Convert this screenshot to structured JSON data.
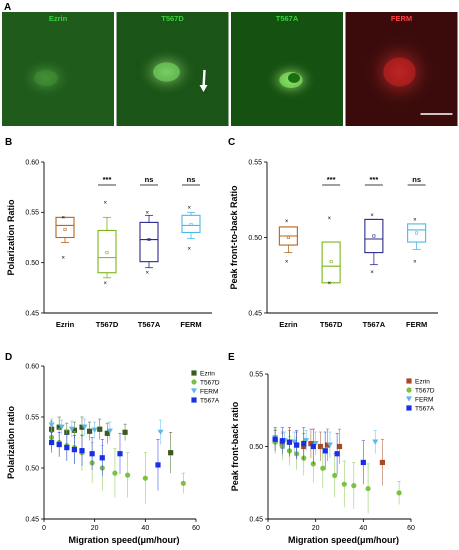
{
  "panel_A": {
    "label": "A",
    "images": [
      {
        "title": "Ezrin",
        "color": "#39d13b",
        "bg": "#1f5c1c",
        "cell": "#3d8a33"
      },
      {
        "title": "T567D",
        "color": "#39d13b",
        "bg": "#1b5417",
        "cell": "#6fc95a"
      },
      {
        "title": "T567A",
        "color": "#39d13b",
        "bg": "#155110",
        "cell": "#7ee05c"
      },
      {
        "title": "FERM",
        "color": "#ff4040",
        "bg": "#3b0b0b",
        "cell": "#b52020"
      }
    ]
  },
  "chart_data": [
    {
      "panel": "B",
      "type": "box",
      "title": "",
      "xlabel": "",
      "ylabel": "Polarization Ratio",
      "ylim": [
        0.45,
        0.6
      ],
      "yticks": [
        "0.45",
        "0.50",
        "0.55",
        "0.60"
      ],
      "categories": [
        "Ezrin",
        "T567D",
        "T567A",
        "FERM"
      ],
      "colors": [
        "#b5651d",
        "#7cb518",
        "#2a2a8c",
        "#4db8e8"
      ],
      "boxes": [
        {
          "min": 0.52,
          "q1": 0.525,
          "median": 0.537,
          "mean": 0.533,
          "q3": 0.545,
          "max": 0.545
        },
        {
          "min": 0.485,
          "q1": 0.49,
          "median": 0.505,
          "mean": 0.51,
          "q3": 0.532,
          "max": 0.545
        },
        {
          "min": 0.495,
          "q1": 0.501,
          "median": 0.523,
          "mean": 0.523,
          "q3": 0.54,
          "max": 0.547
        },
        {
          "min": 0.524,
          "q1": 0.53,
          "median": 0.537,
          "mean": 0.538,
          "q3": 0.547,
          "max": 0.55
        }
      ],
      "points": [
        [
          0.545,
          0.505
        ],
        [
          0.56,
          0.48
        ],
        [
          0.55,
          0.49
        ],
        [
          0.555,
          0.514
        ]
      ],
      "significance": [
        "",
        "***",
        "ns",
        "ns"
      ]
    },
    {
      "panel": "C",
      "type": "box",
      "title": "",
      "xlabel": "",
      "ylabel": "Peak front-to-back Ratio",
      "ylim": [
        0.45,
        0.55
      ],
      "yticks": [
        "0.45",
        "0.50",
        "0.55"
      ],
      "categories": [
        "Ezrin",
        "T567D",
        "T567A",
        "FERM"
      ],
      "colors": [
        "#b5651d",
        "#7cb518",
        "#2a2a8c",
        "#4db8e8"
      ],
      "boxes": [
        {
          "min": 0.49,
          "q1": 0.495,
          "median": 0.501,
          "mean": 0.5,
          "q3": 0.507,
          "max": 0.507
        },
        {
          "min": 0.47,
          "q1": 0.47,
          "median": 0.481,
          "mean": 0.484,
          "q3": 0.497,
          "max": 0.497
        },
        {
          "min": 0.482,
          "q1": 0.49,
          "median": 0.499,
          "mean": 0.501,
          "q3": 0.512,
          "max": 0.512
        },
        {
          "min": 0.492,
          "q1": 0.497,
          "median": 0.505,
          "mean": 0.503,
          "q3": 0.509,
          "max": 0.509
        }
      ],
      "points": [
        [
          0.511,
          0.484
        ],
        [
          0.513,
          0.47
        ],
        [
          0.515,
          0.477
        ],
        [
          0.512,
          0.484
        ]
      ],
      "significance": [
        "",
        "***",
        "***",
        "ns"
      ]
    },
    {
      "panel": "D",
      "type": "scatter",
      "title": "",
      "xlabel": "Migration speed(μm/hour)",
      "ylabel": "Polarization ratio",
      "xlim": [
        0,
        60
      ],
      "ylim": [
        0.45,
        0.6
      ],
      "xticks": [
        "0",
        "20",
        "40",
        "60"
      ],
      "yticks": [
        "0.45",
        "0.50",
        "0.55",
        "0.60"
      ],
      "legend_position": "top-right",
      "series": [
        {
          "name": "Ezrin",
          "color": "#3d5a1e",
          "marker": "square",
          "x": [
            3,
            6,
            9,
            12,
            15,
            18,
            22,
            25,
            32,
            50
          ],
          "y": [
            0.538,
            0.54,
            0.535,
            0.537,
            0.54,
            0.536,
            0.538,
            0.534,
            0.535,
            0.515
          ],
          "err": [
            0.008,
            0.01,
            0.009,
            0.008,
            0.01,
            0.009,
            0.01,
            0.01,
            0.008,
            0.02
          ]
        },
        {
          "name": "T567D",
          "color": "#7cc242",
          "marker": "circle",
          "x": [
            3,
            6,
            9,
            12,
            15,
            19,
            23,
            28,
            33,
            40,
            55
          ],
          "y": [
            0.53,
            0.525,
            0.522,
            0.52,
            0.515,
            0.505,
            0.5,
            0.495,
            0.493,
            0.49,
            0.485
          ],
          "err": [
            0.012,
            0.014,
            0.015,
            0.016,
            0.018,
            0.02,
            0.022,
            0.024,
            0.022,
            0.025,
            0.01
          ]
        },
        {
          "name": "FERM",
          "color": "#5bb8e8",
          "marker": "triangle-down",
          "x": [
            3,
            7,
            11,
            16,
            20,
            26,
            46
          ],
          "y": [
            0.542,
            0.54,
            0.538,
            0.54,
            0.537,
            0.536,
            0.535
          ],
          "err": [
            0.006,
            0.007,
            0.008,
            0.008,
            0.008,
            0.009,
            0.012
          ]
        },
        {
          "name": "T567A",
          "color": "#1a2ee6",
          "marker": "square",
          "x": [
            3,
            6,
            9,
            12,
            15,
            19,
            23,
            30,
            45
          ],
          "y": [
            0.525,
            0.523,
            0.52,
            0.518,
            0.517,
            0.514,
            0.51,
            0.514,
            0.503
          ],
          "err": [
            0.01,
            0.012,
            0.013,
            0.014,
            0.015,
            0.016,
            0.018,
            0.02,
            0.025
          ]
        }
      ]
    },
    {
      "panel": "E",
      "type": "scatter",
      "title": "",
      "xlabel": "Migration speed(μm/hour)",
      "ylabel": "Peak front-back ratio",
      "xlim": [
        0,
        60
      ],
      "ylim": [
        0.45,
        0.55
      ],
      "xticks": [
        "0",
        "20",
        "40",
        "60"
      ],
      "yticks": [
        "0.45",
        "0.50",
        "0.55"
      ],
      "legend_position": "top-right",
      "series": [
        {
          "name": "Ezrin",
          "color": "#a84a25",
          "marker": "square",
          "x": [
            3,
            6,
            9,
            12,
            15,
            18,
            22,
            25,
            30,
            48
          ],
          "y": [
            0.504,
            0.502,
            0.503,
            0.501,
            0.5,
            0.502,
            0.5,
            0.501,
            0.5,
            0.489
          ],
          "err": [
            0.007,
            0.008,
            0.008,
            0.009,
            0.009,
            0.01,
            0.01,
            0.011,
            0.012,
            0.016
          ]
        },
        {
          "name": "T567D",
          "color": "#7cc242",
          "marker": "circle",
          "x": [
            3,
            6,
            9,
            12,
            15,
            19,
            23,
            28,
            32,
            36,
            42,
            55
          ],
          "y": [
            0.503,
            0.5,
            0.497,
            0.495,
            0.492,
            0.488,
            0.485,
            0.48,
            0.474,
            0.473,
            0.471,
            0.468
          ],
          "err": [
            0.008,
            0.009,
            0.01,
            0.011,
            0.012,
            0.013,
            0.014,
            0.015,
            0.016,
            0.016,
            0.017,
            0.008
          ]
        },
        {
          "name": "FERM",
          "color": "#5bb8e8",
          "marker": "triangle-down",
          "x": [
            3,
            7,
            11,
            16,
            20,
            26,
            45
          ],
          "y": [
            0.506,
            0.504,
            0.503,
            0.504,
            0.502,
            0.501,
            0.503
          ],
          "err": [
            0.006,
            0.006,
            0.007,
            0.007,
            0.008,
            0.009,
            0.008
          ]
        },
        {
          "name": "T567A",
          "color": "#1a2ee6",
          "marker": "square",
          "x": [
            3,
            6,
            9,
            12,
            15,
            19,
            24,
            29,
            40
          ],
          "y": [
            0.505,
            0.504,
            0.503,
            0.501,
            0.502,
            0.5,
            0.497,
            0.495,
            0.489
          ],
          "err": [
            0.008,
            0.009,
            0.01,
            0.01,
            0.011,
            0.012,
            0.013,
            0.014,
            0.015
          ]
        }
      ]
    }
  ]
}
